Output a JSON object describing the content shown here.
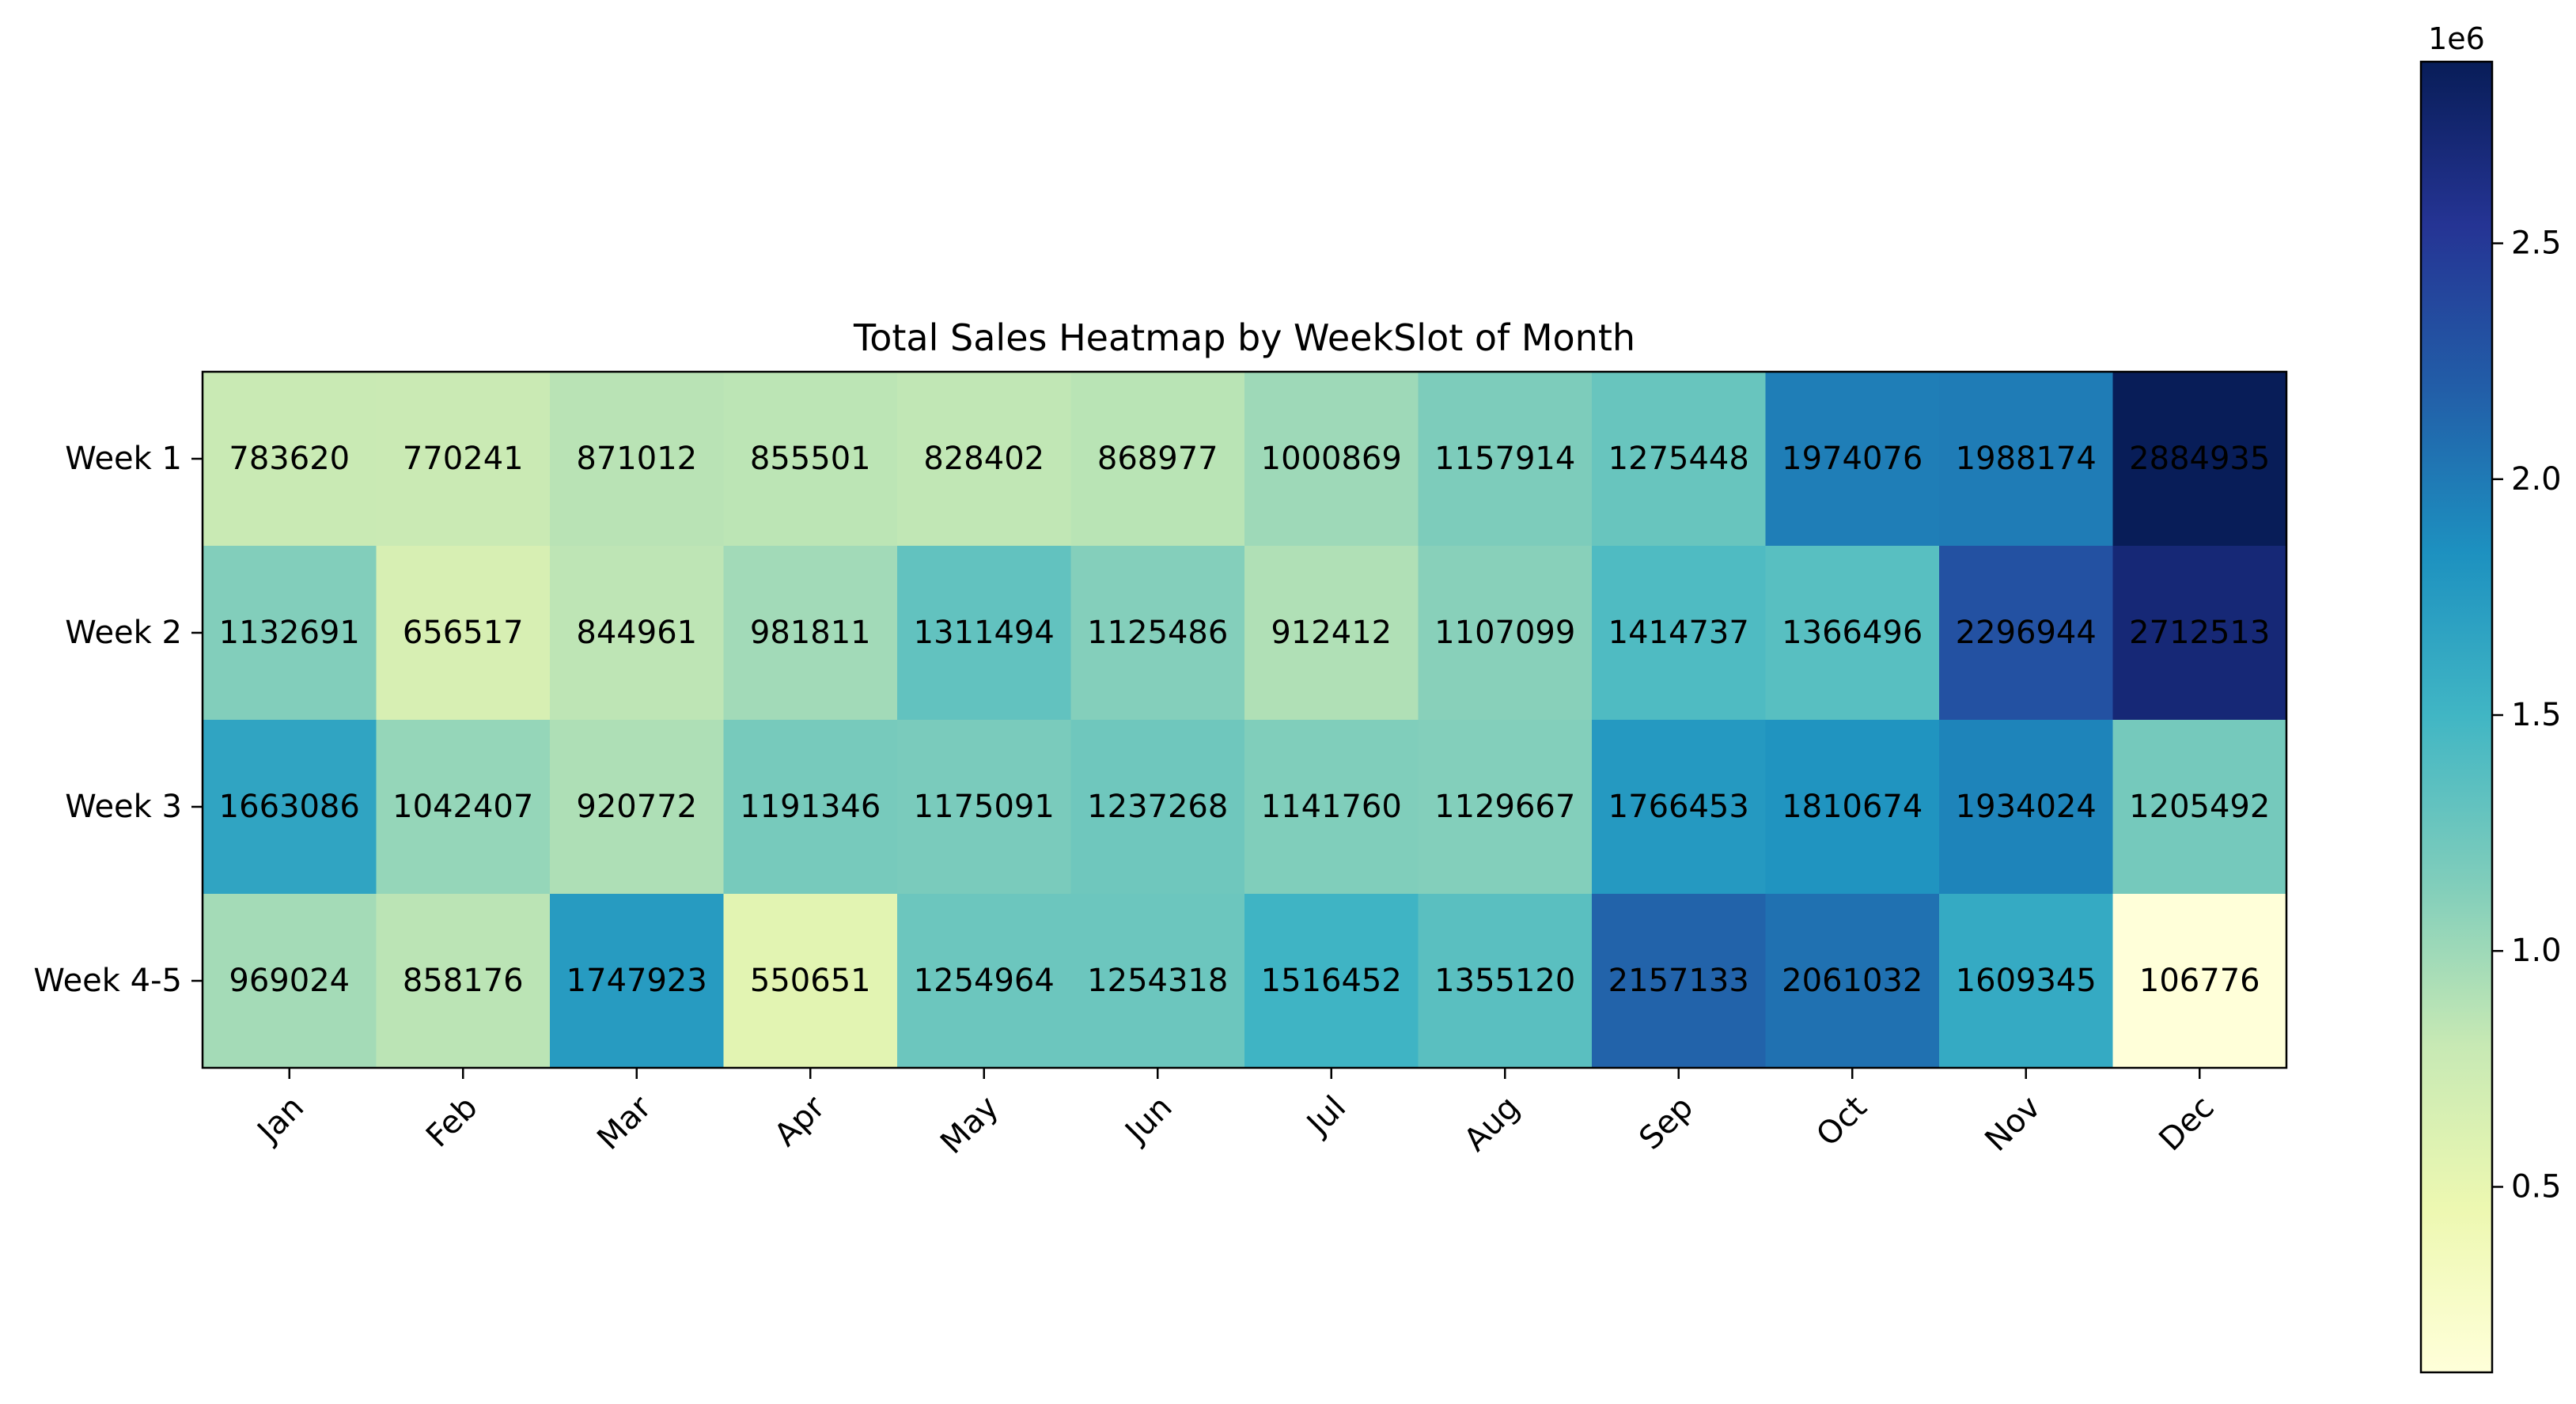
{
  "chart_data": {
    "type": "heatmap",
    "title": "Total Sales Heatmap by WeekSlot of Month",
    "xlabel": "",
    "ylabel": "",
    "x_categories": [
      "Jan",
      "Feb",
      "Mar",
      "Apr",
      "May",
      "Jun",
      "Jul",
      "Aug",
      "Sep",
      "Oct",
      "Nov",
      "Dec"
    ],
    "y_categories": [
      "Week 1",
      "Week 2",
      "Week 3",
      "Week 4-5"
    ],
    "values": [
      [
        783620,
        770241,
        871012,
        855501,
        828402,
        868977,
        1000869,
        1157914,
        1275448,
        1974076,
        1988174,
        2884935
      ],
      [
        1132691,
        656517,
        844961,
        981811,
        1311494,
        1125486,
        912412,
        1107099,
        1414737,
        1366496,
        2296944,
        2712513
      ],
      [
        1663086,
        1042407,
        920772,
        1191346,
        1175091,
        1237268,
        1141760,
        1129667,
        1766453,
        1810674,
        1934024,
        1205492
      ],
      [
        969024,
        858176,
        1747923,
        550651,
        1254964,
        1254318,
        1516452,
        1355120,
        2157133,
        2061032,
        1609345,
        106776
      ]
    ],
    "colormap": "YlGnBu",
    "value_range": [
      106776,
      2884935
    ],
    "colorbar": {
      "ticks": [
        0.5,
        1.0,
        1.5,
        2.0,
        2.5
      ],
      "tick_labels": [
        "0.5",
        "1.0",
        "1.5",
        "2.0",
        "2.5"
      ],
      "scale_label": "1e6"
    },
    "grid": false
  }
}
